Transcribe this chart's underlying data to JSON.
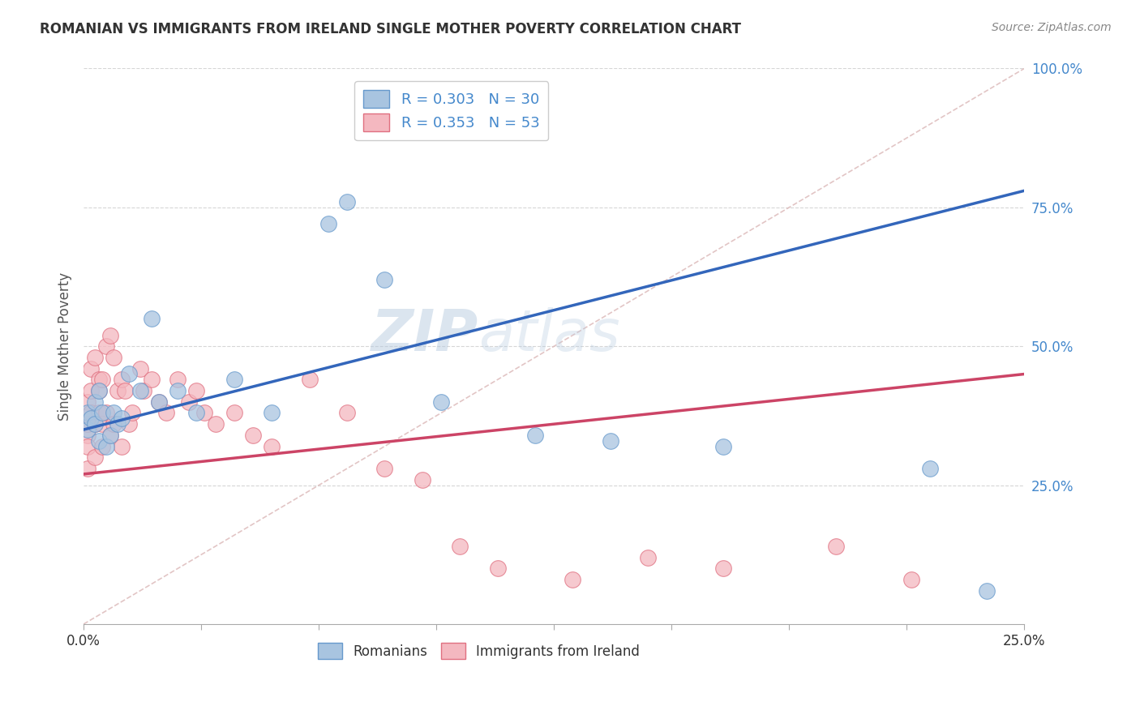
{
  "title": "ROMANIAN VS IMMIGRANTS FROM IRELAND SINGLE MOTHER POVERTY CORRELATION CHART",
  "source_text": "Source: ZipAtlas.com",
  "ylabel": "Single Mother Poverty",
  "xlim": [
    0.0,
    0.25
  ],
  "ylim": [
    0.0,
    1.0
  ],
  "xtick_labels": [
    "0.0%",
    "",
    "",
    "",
    "",
    "",
    "",
    "",
    "25.0%"
  ],
  "xtick_positions": [
    0.0,
    0.03125,
    0.0625,
    0.09375,
    0.125,
    0.15625,
    0.1875,
    0.21875,
    0.25
  ],
  "ytick_labels": [
    "25.0%",
    "50.0%",
    "75.0%",
    "100.0%"
  ],
  "ytick_positions": [
    0.25,
    0.5,
    0.75,
    1.0
  ],
  "watermark_zip": "ZIP",
  "watermark_atlas": "atlas",
  "blue_scatter_color": "#A8C4E0",
  "blue_scatter_edge": "#6699CC",
  "pink_scatter_color": "#F4B8C0",
  "pink_scatter_edge": "#E07080",
  "blue_line_color": "#3366BB",
  "pink_line_color": "#CC4466",
  "diag_line_color": "#DDBBBB",
  "background_color": "#FFFFFF",
  "grid_color": "#CCCCCC",
  "ytick_color": "#4488CC",
  "xtick_color": "#333333",
  "title_color": "#333333",
  "source_color": "#888888",
  "ylabel_color": "#555555",
  "romanians_x": [
    0.001,
    0.001,
    0.002,
    0.003,
    0.003,
    0.004,
    0.004,
    0.005,
    0.006,
    0.007,
    0.008,
    0.009,
    0.01,
    0.012,
    0.015,
    0.018,
    0.02,
    0.025,
    0.03,
    0.04,
    0.05,
    0.065,
    0.07,
    0.08,
    0.095,
    0.12,
    0.14,
    0.17,
    0.225,
    0.24
  ],
  "romanians_y": [
    0.35,
    0.38,
    0.37,
    0.4,
    0.36,
    0.33,
    0.42,
    0.38,
    0.32,
    0.34,
    0.38,
    0.36,
    0.37,
    0.45,
    0.42,
    0.55,
    0.4,
    0.42,
    0.38,
    0.44,
    0.38,
    0.72,
    0.76,
    0.62,
    0.4,
    0.34,
    0.33,
    0.32,
    0.28,
    0.06
  ],
  "ireland_x": [
    0.001,
    0.001,
    0.001,
    0.001,
    0.001,
    0.002,
    0.002,
    0.002,
    0.003,
    0.003,
    0.003,
    0.004,
    0.004,
    0.004,
    0.005,
    0.005,
    0.005,
    0.006,
    0.006,
    0.007,
    0.007,
    0.008,
    0.008,
    0.009,
    0.01,
    0.01,
    0.011,
    0.012,
    0.013,
    0.015,
    0.016,
    0.018,
    0.02,
    0.022,
    0.025,
    0.028,
    0.03,
    0.032,
    0.035,
    0.04,
    0.045,
    0.05,
    0.06,
    0.07,
    0.08,
    0.09,
    0.1,
    0.11,
    0.13,
    0.15,
    0.17,
    0.2,
    0.22
  ],
  "ireland_y": [
    0.34,
    0.32,
    0.36,
    0.4,
    0.28,
    0.42,
    0.46,
    0.38,
    0.48,
    0.36,
    0.3,
    0.44,
    0.38,
    0.42,
    0.44,
    0.36,
    0.32,
    0.5,
    0.38,
    0.52,
    0.34,
    0.48,
    0.36,
    0.42,
    0.44,
    0.32,
    0.42,
    0.36,
    0.38,
    0.46,
    0.42,
    0.44,
    0.4,
    0.38,
    0.44,
    0.4,
    0.42,
    0.38,
    0.36,
    0.38,
    0.34,
    0.32,
    0.44,
    0.38,
    0.28,
    0.26,
    0.14,
    0.1,
    0.08,
    0.12,
    0.1,
    0.14,
    0.08
  ]
}
